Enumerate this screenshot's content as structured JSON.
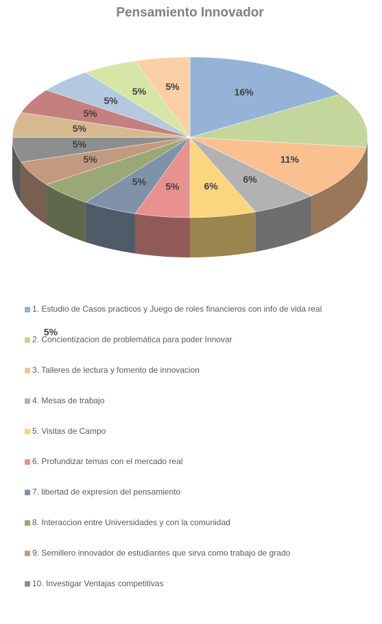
{
  "chart_data": {
    "type": "pie3d",
    "title": "Pensamiento Innovador",
    "categories": [
      "1. Estudio de Casos practicos y Juego de roles financieros con info de vida real",
      "2. Concientizacion de problemática para poder Innovar",
      "3. Talleres de lectura y fomento de innovacion",
      "4. Mesas de trabajo",
      "5. Visitas de Campo",
      "6. Profundizar temas con el mercado real",
      "7. libertad de expresion del pensamiento",
      "8. Interaccion entre Universidades y con la comunidad",
      "9. Semillero innovador de estudiantes que sirva como trabajo de grado",
      "10. Investigar Ventajas competitivas",
      null,
      null,
      null,
      null,
      null
    ],
    "values": [
      16,
      11,
      11,
      6,
      6,
      5,
      5,
      5,
      5,
      5,
      5,
      5,
      5,
      5,
      5
    ],
    "value_labels": [
      "16%",
      null,
      "11%",
      "6%",
      "6%",
      "5%",
      "5%",
      "5%",
      "5%",
      "5%",
      "5%",
      "5%",
      "5%",
      "5%",
      "5%"
    ],
    "colors": [
      "#95b3d7",
      "#c3d69b",
      "#fac090",
      "#b2b2b2",
      "#fcd57f",
      "#e8918f",
      "#7f92a8",
      "#9aa777",
      "#c29a80",
      "#8e8e8e",
      "#d7b98f",
      "#c47f7f",
      "#b4c8e0",
      "#d6e6a7",
      "#fbcfa5"
    ],
    "legend": "bottom"
  }
}
